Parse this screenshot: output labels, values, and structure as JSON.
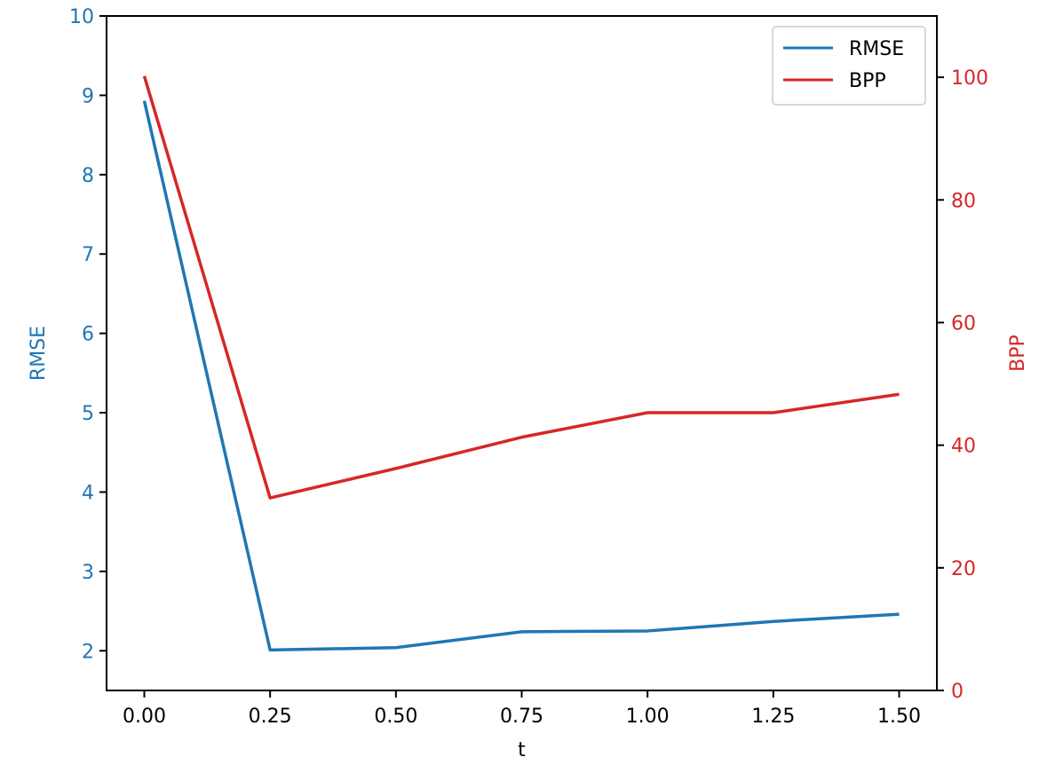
{
  "chart_data": {
    "type": "line",
    "title": "",
    "xlabel": "t",
    "x": [
      0.0,
      0.25,
      0.5,
      0.75,
      1.0,
      1.25,
      1.5
    ],
    "x_ticks": [
      "0.00",
      "0.25",
      "0.50",
      "0.75",
      "1.00",
      "1.25",
      "1.50"
    ],
    "xlim": [
      -0.075,
      1.575
    ],
    "y_left": {
      "label": "RMSE",
      "color": "#1f77b4",
      "lim": [
        1.5,
        10
      ],
      "ticks": [
        "2",
        "3",
        "4",
        "5",
        "6",
        "7",
        "8",
        "9",
        "10"
      ]
    },
    "y_right": {
      "label": "BPP",
      "color": "#d62728",
      "lim": [
        0,
        110
      ],
      "ticks": [
        "0",
        "20",
        "40",
        "60",
        "80",
        "100"
      ]
    },
    "series": [
      {
        "name": "RMSE",
        "axis": "left",
        "color": "#1f77b4",
        "values": [
          8.93,
          2.01,
          2.04,
          2.24,
          2.25,
          2.37,
          2.46
        ]
      },
      {
        "name": "BPP",
        "axis": "right",
        "color": "#d62728",
        "values": [
          100.2,
          31.4,
          36.2,
          41.3,
          45.3,
          45.3,
          48.3
        ]
      }
    ],
    "legend": {
      "position": "upper-right",
      "entries": [
        "RMSE",
        "BPP"
      ]
    },
    "grid": false
  }
}
